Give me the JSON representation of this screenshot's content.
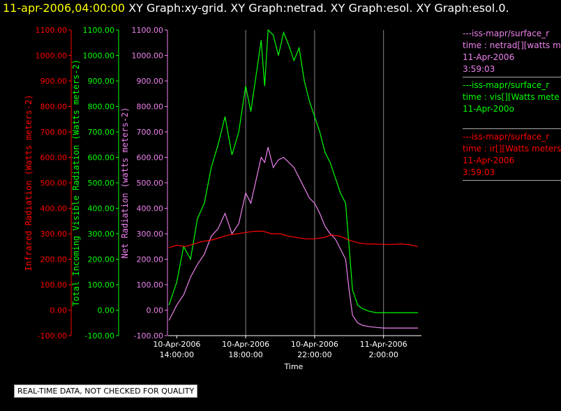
{
  "header": {
    "timestamp": "11-apr-2006,04:00:00",
    "graphs": "XY Graph:xy-grid.  XY Graph:netrad.  XY Graph:esol.  XY Graph:esol.0."
  },
  "footer": {
    "quality_note": "REAL-TIME DATA, NOT CHECKED FOR QUALITY"
  },
  "legend": [
    {
      "name": "---iss-mapr/surface_r",
      "desc": "time : netrad[][watts m",
      "date": "11-Apr-2006",
      "time": "3:59:03",
      "color": "#ee82ee"
    },
    {
      "name": "---iss-mapr/surface_r",
      "desc": "time : vis[][Watts mete",
      "date": "11-Apr-200o",
      "time": "",
      "color": "#00ff00"
    },
    {
      "name": "---iss-mapr/surface_r",
      "desc": "time : ir[][Watts meters",
      "date": "11-Apr-2006",
      "time": "3:59:03",
      "color": "#ff0000"
    }
  ],
  "chart_data": {
    "type": "line",
    "xlabel": "Time",
    "x_ticks": [
      {
        "hours": 14,
        "line1": "10-Apr-2006",
        "line2": "14:00:00"
      },
      {
        "hours": 18,
        "line1": "10-Apr-2006",
        "line2": "18:00:00"
      },
      {
        "hours": 22,
        "line1": "10-Apr-2006",
        "line2": "22:00:00"
      },
      {
        "hours": 26,
        "line1": "11-Apr-2006",
        "line2": "2:00:00"
      }
    ],
    "xlim_hours": [
      13.5,
      28.2
    ],
    "grid": "vertical",
    "axes": [
      {
        "label": "Infrared Radiation (Watts meters-2)",
        "color": "#ff0000",
        "ylim": [
          -100,
          1100
        ],
        "ticks": [
          "1100.00",
          "1000.00",
          "900.00",
          "800.00",
          "700.00",
          "600.00",
          "500.00",
          "400.00",
          "300.00",
          "200.00",
          "100.00",
          "0.00",
          "-100.00"
        ]
      },
      {
        "label": "Total Incoming Visible Radiation (Watts meters-2)",
        "color": "#00ff00",
        "ylim": [
          -100,
          1100
        ],
        "ticks": [
          "1100.00",
          "1000.00",
          "900.00",
          "800.00",
          "700.00",
          "600.00",
          "500.00",
          "400.00",
          "300.00",
          "200.00",
          "100.00",
          "0.00",
          "-100.00"
        ]
      },
      {
        "label": "Net Radiation (watts meters-2)",
        "color": "#ee82ee",
        "ylim": [
          -100,
          1100
        ],
        "ticks": [
          "1100.00",
          "1000.00",
          "900.00",
          "800.00",
          "700.00",
          "600.00",
          "500.00",
          "400.00",
          "300.00",
          "200.00",
          "100.00",
          "0.00",
          "-100.00"
        ]
      }
    ],
    "series": [
      {
        "name": "vis",
        "color": "#00ff00",
        "x": [
          13.55,
          14.0,
          14.4,
          14.8,
          15.2,
          15.6,
          16.0,
          16.4,
          16.8,
          17.2,
          17.6,
          18.0,
          18.3,
          18.6,
          18.9,
          19.1,
          19.3,
          19.6,
          19.9,
          20.2,
          20.5,
          20.8,
          21.1,
          21.4,
          21.7,
          22.0,
          22.3,
          22.6,
          22.9,
          23.2,
          23.5,
          23.8,
          24.0,
          24.2,
          24.5,
          24.8,
          25.2,
          25.6,
          26.0,
          26.4,
          26.8,
          27.2,
          27.6,
          28.0
        ],
        "y": [
          20,
          110,
          250,
          200,
          360,
          420,
          560,
          650,
          760,
          610,
          700,
          880,
          780,
          920,
          1060,
          880,
          1100,
          1080,
          1000,
          1090,
          1040,
          980,
          1030,
          900,
          820,
          760,
          700,
          620,
          580,
          520,
          460,
          420,
          250,
          80,
          20,
          5,
          -5,
          -10,
          -10,
          -10,
          -10,
          -10,
          -10,
          -10
        ]
      },
      {
        "name": "netrad",
        "color": "#ee82ee",
        "x": [
          13.55,
          14.0,
          14.4,
          14.8,
          15.2,
          15.6,
          16.0,
          16.4,
          16.8,
          17.2,
          17.6,
          18.0,
          18.3,
          18.6,
          18.9,
          19.1,
          19.3,
          19.6,
          19.9,
          20.2,
          20.5,
          20.8,
          21.1,
          21.4,
          21.7,
          22.0,
          22.3,
          22.6,
          22.9,
          23.2,
          23.5,
          23.8,
          24.0,
          24.2,
          24.5,
          24.8,
          25.2,
          25.6,
          26.0,
          26.4,
          26.8,
          27.2,
          27.6,
          28.0
        ],
        "y": [
          -40,
          20,
          60,
          130,
          180,
          220,
          290,
          320,
          380,
          300,
          340,
          460,
          420,
          510,
          600,
          580,
          640,
          560,
          590,
          600,
          580,
          560,
          520,
          480,
          440,
          420,
          380,
          330,
          300,
          280,
          240,
          200,
          80,
          -20,
          -50,
          -60,
          -65,
          -68,
          -70,
          -70,
          -70,
          -70,
          -70,
          -70
        ]
      },
      {
        "name": "ir",
        "color": "#ff0000",
        "x": [
          13.55,
          14.0,
          14.5,
          15.0,
          15.5,
          16.0,
          16.5,
          17.0,
          17.5,
          18.0,
          18.5,
          19.0,
          19.5,
          20.0,
          20.5,
          21.0,
          21.5,
          22.0,
          22.5,
          23.0,
          23.5,
          24.0,
          24.5,
          25.0,
          25.5,
          26.0,
          26.5,
          27.0,
          27.5,
          28.0
        ],
        "y": [
          245,
          255,
          250,
          260,
          270,
          275,
          285,
          295,
          300,
          305,
          310,
          310,
          300,
          300,
          290,
          285,
          280,
          280,
          285,
          295,
          290,
          275,
          265,
          260,
          260,
          258,
          258,
          260,
          257,
          250
        ]
      }
    ]
  }
}
